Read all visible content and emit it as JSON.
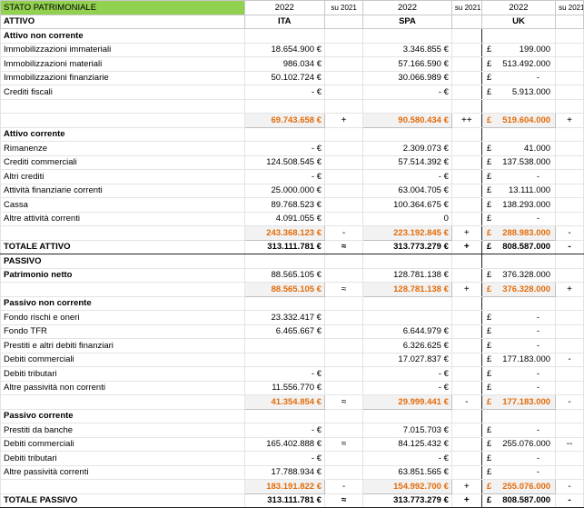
{
  "header": {
    "title": "STATO PATRIMONIALE",
    "year_ita": "2022",
    "su_ita": "su 2021",
    "year_spa": "2022",
    "su_spa": "su 2021",
    "year_uk": "2022",
    "su_uk": "su 2021",
    "col_ita": "ITA",
    "col_spa": "SPA",
    "col_uk": "UK",
    "attivo": "ATTIVO"
  },
  "rows": [
    {
      "label": "Attivo non corrente",
      "type": "section"
    },
    {
      "label": "Immobilizzazioni immateriali",
      "ita": "18.654.900 €",
      "spa": "3.346.855 €",
      "uk_cur": "£",
      "uk": "199.000"
    },
    {
      "label": "Immobilizzazioni materiali",
      "ita": "986.034 €",
      "spa": "57.166.590 €",
      "uk_cur": "£",
      "uk": "513.492.000"
    },
    {
      "label": "Immobilizzazioni finanziarie",
      "ita": "50.102.724 €",
      "spa": "30.066.989 €",
      "uk_cur": "£",
      "uk": "-"
    },
    {
      "label": "Crediti fiscali",
      "ita": "-   €",
      "spa": "-   €",
      "uk_cur": "£",
      "uk": "5.913.000"
    },
    {
      "label": "",
      "type": "blank"
    },
    {
      "label": "",
      "type": "subtotal",
      "ita": "69.743.658 €",
      "ita_s": "+",
      "spa": "90.580.434 €",
      "spa_s": "++",
      "uk_cur": "£",
      "uk": "519.604.000",
      "uk_s": "+"
    },
    {
      "label": "Attivo corrente",
      "type": "section"
    },
    {
      "label": "Rimanenze",
      "ita": "-   €",
      "spa": "2.309.073 €",
      "uk_cur": "£",
      "uk": "41.000"
    },
    {
      "label": "Crediti commerciali",
      "ita": "124.508.545 €",
      "spa": "57.514.392 €",
      "uk_cur": "£",
      "uk": "137.538.000"
    },
    {
      "label": "Altri crediti",
      "ita": "-   €",
      "spa": "-   €",
      "uk_cur": "£",
      "uk": "-"
    },
    {
      "label": "Attività finanziarie correnti",
      "ita": "25.000.000 €",
      "spa": "63.004.705 €",
      "uk_cur": "£",
      "uk": "13.111.000"
    },
    {
      "label": "Cassa",
      "ita": "89.768.523 €",
      "spa": "100.364.675 €",
      "uk_cur": "£",
      "uk": "138.293.000"
    },
    {
      "label": "Altre attività correnti",
      "ita": "4.091.055 €",
      "spa": "0",
      "uk_cur": "£",
      "uk": "-"
    },
    {
      "label": "",
      "type": "subtotal",
      "ita": "243.368.123 €",
      "ita_s": "-",
      "spa": "223.192.845 €",
      "spa_s": "+",
      "uk_cur": "£",
      "uk": "288.983.000",
      "uk_s": "-"
    },
    {
      "label": "TOTALE ATTIVO",
      "type": "total",
      "ita": "313.111.781 €",
      "ita_s": "≈",
      "spa": "313.773.279 €",
      "spa_s": "+",
      "uk_cur": "£",
      "uk": "808.587.000",
      "uk_s": "-"
    },
    {
      "label": "PASSIVO",
      "type": "heading"
    },
    {
      "label": "Patrimonio netto",
      "type": "sectionval",
      "ita": "88.565.105 €",
      "spa": "128.781.138 €",
      "uk_cur": "£",
      "uk": "376.328.000"
    },
    {
      "label": "",
      "type": "subtotal",
      "ita": "88.565.105 €",
      "ita_s": "≈",
      "spa": "128.781.138 €",
      "spa_s": "+",
      "uk_cur": "£",
      "uk": "376.328.000",
      "uk_s": "+"
    },
    {
      "label": "Passivo non corrente",
      "type": "section"
    },
    {
      "label": "Fondo rischi e oneri",
      "ita": "23.332.417 €",
      "spa": "",
      "uk_cur": "£",
      "uk": "-"
    },
    {
      "label": "Fondo TFR",
      "ita": "6.465.667 €",
      "spa": "6.644.979 €",
      "uk_cur": "£",
      "uk": "-"
    },
    {
      "label": "Prestiti e altri debiti finanziari",
      "ita": "",
      "spa": "6.326.625 €",
      "uk_cur": "£",
      "uk": "-"
    },
    {
      "label": "Debiti commerciali",
      "ita": "",
      "spa": "17.027.837 €",
      "uk_cur": "£",
      "uk": "177.183.000",
      "uk_s": "-"
    },
    {
      "label": "Debiti tributari",
      "ita": "-   €",
      "spa": "-   €",
      "uk_cur": "£",
      "uk": "-"
    },
    {
      "label": "Altre passività non correnti",
      "ita": "11.556.770 €",
      "spa": "-   €",
      "uk_cur": "£",
      "uk": "-"
    },
    {
      "label": "",
      "type": "subtotal",
      "ita": "41.354.854 €",
      "ita_s": "≈",
      "spa": "29.999.441 €",
      "spa_s": "-",
      "uk_cur": "£",
      "uk": "177.183.000",
      "uk_s": "-"
    },
    {
      "label": "Passivo corrente",
      "type": "section"
    },
    {
      "label": "Prestiti da banche",
      "ita": "-   €",
      "spa": "7.015.703 €",
      "uk_cur": "£",
      "uk": "-"
    },
    {
      "label": "Debiti commerciali",
      "ita": "165.402.888 €",
      "ita_s": "≈",
      "spa": "84.125.432 €",
      "uk_cur": "£",
      "uk": "255.076.000",
      "uk_s": "--"
    },
    {
      "label": "Debiti tributari",
      "ita": "-   €",
      "spa": "-   €",
      "uk_cur": "£",
      "uk": "-"
    },
    {
      "label": "Altre passività correnti",
      "ita": "17.788.934 €",
      "spa": "63.851.565 €",
      "uk_cur": "£",
      "uk": "-"
    },
    {
      "label": "",
      "type": "subtotal",
      "ita": "183.191.822 €",
      "ita_s": "-",
      "spa": "154.992.700 €",
      "spa_s": "+",
      "uk_cur": "£",
      "uk": "255.076.000",
      "uk_s": "-"
    },
    {
      "label": "TOTALE PASSIVO",
      "type": "total",
      "ita": "313.111.781 €",
      "ita_s": "≈",
      "spa": "313.773.279 €",
      "spa_s": "+",
      "uk_cur": "£",
      "uk": "808.587.000",
      "uk_s": "-"
    }
  ]
}
